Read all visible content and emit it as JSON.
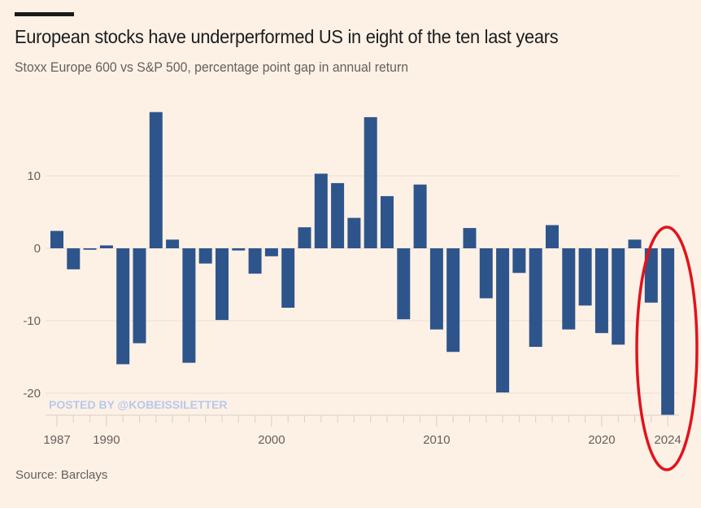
{
  "header": {
    "title": "European stocks have underperformed US in eight of the ten last years",
    "subtitle": "Stoxx Europe 600 vs S&P 500, percentage point gap in annual return"
  },
  "footer": {
    "source": "Source: Barclays"
  },
  "watermark": "POSTED BY @KOBEISSILETTER",
  "colors": {
    "background": "#fdf1e6",
    "bar": "#2e558b",
    "highlight_ellipse": "#e3121b",
    "gridline": "#ece0d3",
    "axis": "#d9cfc5"
  },
  "chart_data": {
    "type": "bar",
    "title": "European stocks have underperformed US in eight of the ten last years",
    "subtitle": "Stoxx Europe 600 vs S&P 500, percentage point gap in annual return",
    "xlabel": "",
    "ylabel": "",
    "x": [
      1987,
      1988,
      1989,
      1990,
      1991,
      1992,
      1993,
      1994,
      1995,
      1996,
      1997,
      1998,
      1999,
      2000,
      2001,
      2002,
      2003,
      2004,
      2005,
      2006,
      2007,
      2008,
      2009,
      2010,
      2011,
      2012,
      2013,
      2014,
      2015,
      2016,
      2017,
      2018,
      2019,
      2020,
      2021,
      2022,
      2023,
      2024
    ],
    "values": [
      2.4,
      -2.9,
      -0.2,
      0.4,
      -16.0,
      -13.1,
      18.8,
      1.2,
      -15.8,
      -2.1,
      -9.9,
      -0.3,
      -3.5,
      -1.1,
      -8.2,
      2.9,
      10.3,
      9.0,
      4.2,
      18.1,
      7.2,
      -9.8,
      8.8,
      -11.2,
      -14.3,
      2.8,
      -6.9,
      -19.9,
      -3.4,
      -13.6,
      3.2,
      -11.2,
      -7.9,
      -11.7,
      -13.3,
      1.2,
      -7.5,
      -23.0
    ],
    "ylim": [
      -23,
      20
    ],
    "yticks": [
      -20,
      -10,
      0,
      10
    ],
    "ytick_labels": [
      "-20",
      "-10",
      "0",
      "10"
    ],
    "xticks": [
      1987,
      1990,
      2000,
      2010,
      2020,
      2024
    ],
    "xtick_labels": [
      "1987",
      "1990",
      "2000",
      "2010",
      "2020",
      "2024"
    ],
    "grid": true,
    "annotation": {
      "type": "ellipse",
      "highlight_years": [
        2023,
        2024
      ],
      "color": "#e3121b"
    },
    "source": "Source: Barclays"
  }
}
